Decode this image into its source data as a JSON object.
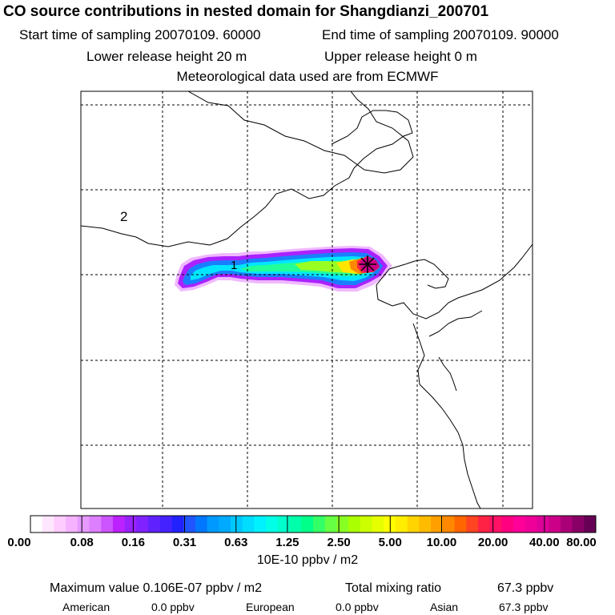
{
  "title": "CO  source contributions in nested domain for Shangdianzi_200701",
  "sampling": {
    "start": "Start time of sampling 20070109. 60000",
    "end": "End time of sampling 20070109. 90000"
  },
  "release": {
    "lower": "Lower release height   20 m",
    "upper": "Upper release height    0 m"
  },
  "meteo": "Meteorological data used are from ECMWF",
  "map_labels": {
    "label_2": "2",
    "label_1": "1"
  },
  "colorbar": {
    "ticks": [
      "0.00",
      "0.08",
      "0.16",
      "0.31",
      "0.63",
      "1.25",
      "2.50",
      "5.00",
      "10.00",
      "20.00",
      "40.00",
      "80.00"
    ],
    "units": "10E-10 ppbv / m2",
    "colors": [
      "#ffffff",
      "#ffe6ff",
      "#ffccff",
      "#f5b3ff",
      "#e699ff",
      "#dd7fff",
      "#cc55ff",
      "#bb22ff",
      "#9922ff",
      "#7f22ff",
      "#5f22ff",
      "#4422ff",
      "#2222ff",
      "#2255ff",
      "#0077ff",
      "#0099ff",
      "#00aaff",
      "#00c8ff",
      "#00ddff",
      "#00f2ff",
      "#00ffe6",
      "#00ffcc",
      "#00ffaa",
      "#00ff88",
      "#33ff66",
      "#66ff44",
      "#88ff22",
      "#aaff00",
      "#ccff00",
      "#e6ff00",
      "#ffff00",
      "#ffee00",
      "#ffd400",
      "#ffbb00",
      "#ffa000",
      "#ff8800",
      "#ff6600",
      "#ff4422",
      "#ff2244",
      "#ff1166",
      "#ff0080",
      "#ff0099",
      "#ee0099",
      "#dd0099",
      "#cc0088",
      "#aa0077",
      "#880066",
      "#660055"
    ]
  },
  "stats": {
    "max_label": "Maximum value  0.106E-07 ppbv / m2",
    "total_label": "Total mixing ratio",
    "total_value": "67.3 ppbv",
    "american_label": "American",
    "american_value": "0.0 ppbv",
    "european_label": "European",
    "european_value": "0.0 ppbv",
    "asian_label": "Asian",
    "asian_value": "67.3 ppbv"
  }
}
